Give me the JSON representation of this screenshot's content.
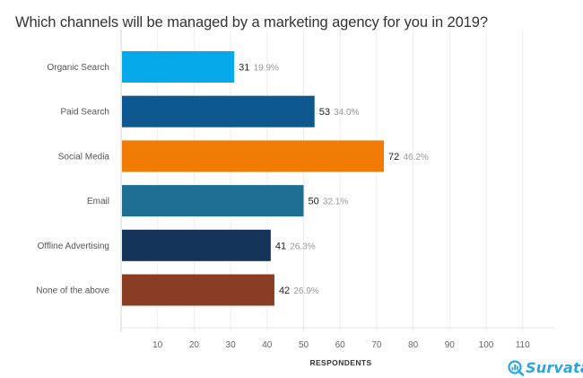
{
  "chart_data": {
    "type": "bar",
    "orientation": "horizontal",
    "title": "Which channels will be managed by a marketing agency for you in 2019?",
    "xlabel": "RESPONDENTS",
    "ylabel": "",
    "xlim": [
      0,
      118
    ],
    "xticks": [
      10,
      20,
      30,
      40,
      50,
      60,
      70,
      80,
      90,
      100,
      110
    ],
    "grid": true,
    "categories": [
      "Organic Search",
      "Paid Search",
      "Social Media",
      "Email",
      "Offline Advertising",
      "None of the above"
    ],
    "values": [
      31,
      53,
      72,
      50,
      41,
      42
    ],
    "percent_labels": [
      "19.9%",
      "34.0%",
      "46.2%",
      "32.1%",
      "26.3%",
      "26.9%"
    ],
    "colors": [
      "#06aaeb",
      "#0d588f",
      "#f07b05",
      "#1e6f93",
      "#15345a",
      "#8a3d22"
    ]
  },
  "brand": {
    "name": "Survata",
    "icon": "magnifier-chart-icon",
    "color": "#2aa5e0"
  }
}
